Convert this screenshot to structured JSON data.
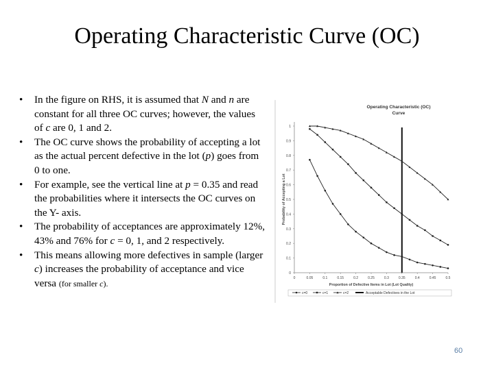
{
  "slide": {
    "title": "Operating Characteristic Curve (OC)",
    "page_number": "60",
    "bullets": [
      {
        "segments": [
          {
            "text": "In the figure on RHS, it is assumed that "
          },
          {
            "text": "N",
            "style": "i"
          },
          {
            "text": " and "
          },
          {
            "text": "n",
            "style": "i"
          },
          {
            "text": " are constant for all three OC curves; however, the values of "
          },
          {
            "text": "c",
            "style": "i"
          },
          {
            "text": " are 0, 1 and 2."
          }
        ]
      },
      {
        "segments": [
          {
            "text": "The OC curve shows the probability of accepting a lot as the actual percent defective in the lot ("
          },
          {
            "text": "p",
            "style": "i"
          },
          {
            "text": ") goes from 0 to one."
          }
        ]
      },
      {
        "segments": [
          {
            "text": "For example, see the vertical line at              "
          },
          {
            "text": "p",
            "style": "i"
          },
          {
            "text": " = 0.35 and read the probabilities where it intersects the OC curves on the Y- axis."
          }
        ]
      },
      {
        "segments": [
          {
            "text": "The probability of acceptances are approximately 12%, 43% and 76% for "
          },
          {
            "text": "c",
            "style": "i"
          },
          {
            "text": " = 0, 1, and 2 respectively."
          }
        ]
      },
      {
        "segments": [
          {
            "text": "This means allowing more defectives in sample (larger "
          },
          {
            "text": "c",
            "style": "i"
          },
          {
            "text": ") increases the probability of acceptance and vice versa "
          },
          {
            "text": "(for smaller ",
            "style": "small"
          },
          {
            "text": "c",
            "style": "small-i"
          },
          {
            "text": ").",
            "style": "small"
          }
        ]
      }
    ]
  },
  "chart_data": {
    "type": "line",
    "title": [
      "Operating Characteristic (OC)",
      "Curve"
    ],
    "xlabel": "Proportion of Defective Items in Lot (Lot Quality)",
    "ylabel": "Probability of Accepting a Lot",
    "xlim": [
      0,
      0.5
    ],
    "ylim": [
      0,
      1
    ],
    "x_ticks": [
      "0",
      "0.05",
      "0.1",
      "0.15",
      "0.2",
      "0.25",
      "0.3",
      "0.35",
      "0.4",
      "0.45",
      "0.5"
    ],
    "y_ticks": [
      "0",
      "0.1",
      "0.2",
      "0.3",
      "0.4",
      "0.5",
      "0.6",
      "0.7",
      "0.8",
      "0.9",
      "1"
    ],
    "x": [
      0.05,
      0.075,
      0.1,
      0.125,
      0.15,
      0.175,
      0.2,
      0.225,
      0.25,
      0.275,
      0.3,
      0.325,
      0.35,
      0.375,
      0.4,
      0.425,
      0.45,
      0.475,
      0.5
    ],
    "series": [
      {
        "name": "c=0",
        "marker": "circle",
        "values": [
          0.77,
          0.66,
          0.56,
          0.47,
          0.4,
          0.33,
          0.28,
          0.24,
          0.2,
          0.17,
          0.14,
          0.12,
          0.11,
          0.09,
          0.07,
          0.06,
          0.05,
          0.04,
          0.03
        ]
      },
      {
        "name": "c=1",
        "marker": "square",
        "values": [
          0.98,
          0.94,
          0.89,
          0.84,
          0.79,
          0.74,
          0.68,
          0.63,
          0.58,
          0.53,
          0.48,
          0.44,
          0.4,
          0.36,
          0.32,
          0.29,
          0.25,
          0.22,
          0.19
        ]
      },
      {
        "name": "c=2",
        "marker": "triangle",
        "values": [
          1.0,
          1.0,
          0.99,
          0.98,
          0.97,
          0.95,
          0.93,
          0.91,
          0.88,
          0.85,
          0.82,
          0.79,
          0.76,
          0.72,
          0.68,
          0.64,
          0.6,
          0.55,
          0.5
        ]
      }
    ],
    "reference_line": {
      "x": 0.35,
      "label": "Acceptable Defectives in the Lot"
    },
    "legend": "bottom",
    "grid": false
  }
}
